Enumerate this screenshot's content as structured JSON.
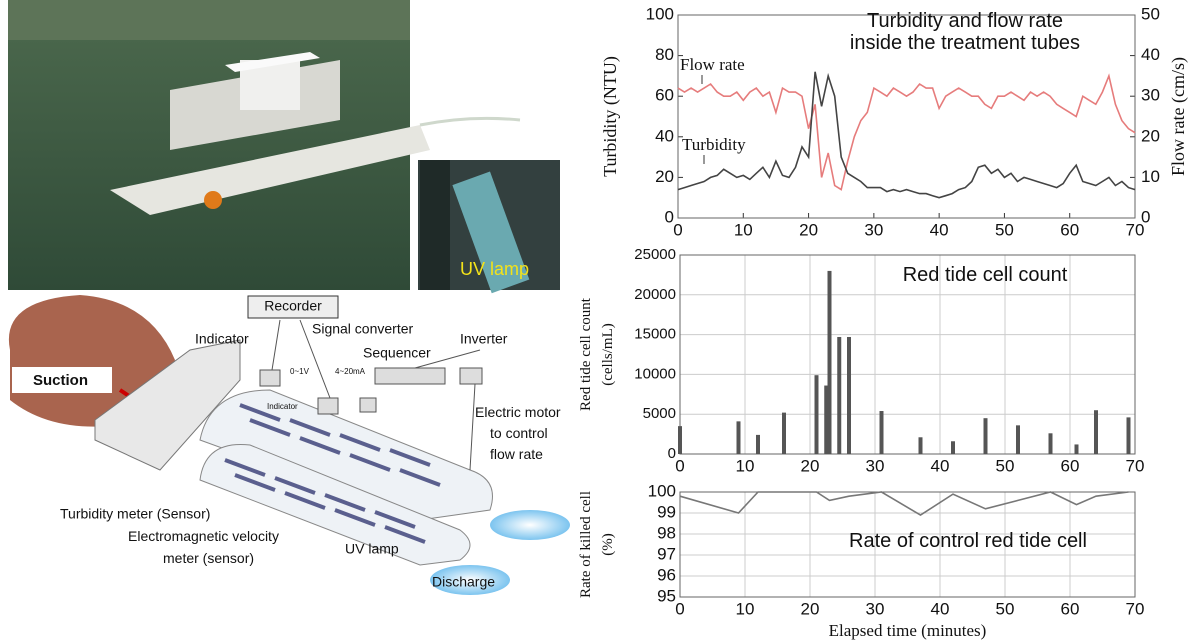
{
  "photo": {
    "inset_label": "UV lamp"
  },
  "diagram": {
    "recorder": "Recorder",
    "indicator": "Indicator",
    "signal_converter": "Signal converter",
    "sequencer": "Sequencer",
    "inverter": "Inverter",
    "suction": "Suction",
    "indicator_small": "Indicator",
    "voltage": "0~1V",
    "current": "4~20mA",
    "motor": [
      "Electric motor",
      "to control",
      "flow rate"
    ],
    "turbidity_meter": "Turbidity meter (Sensor)",
    "velocity_meter": [
      "Electromagnetic velocity",
      "meter (sensor)"
    ],
    "uv_lamp": "UV lamp",
    "discharge": "Discharge"
  },
  "chart_data": [
    {
      "type": "line",
      "title": [
        "Turbidity and flow rate",
        "inside the treatment tubes"
      ],
      "ylabel": "Turbidity (NTU)",
      "y2label": "Flow rate (cm/s)",
      "x": [
        0,
        1,
        2,
        3,
        4,
        5,
        6,
        7,
        8,
        9,
        10,
        11,
        12,
        13,
        14,
        15,
        16,
        17,
        18,
        19,
        20,
        21,
        22,
        23,
        24,
        25,
        26,
        27,
        28,
        29,
        30,
        31,
        32,
        33,
        34,
        35,
        36,
        37,
        38,
        39,
        40,
        41,
        42,
        43,
        44,
        45,
        46,
        47,
        48,
        49,
        50,
        51,
        52,
        53,
        54,
        55,
        56,
        57,
        58,
        59,
        60,
        61,
        62,
        63,
        64,
        65,
        66,
        67,
        68,
        69,
        70
      ],
      "series": [
        {
          "name": "Flow rate",
          "color": "#e67c7c",
          "axis": "y2",
          "values": [
            32,
            31,
            32,
            31,
            32,
            33,
            31,
            30,
            30,
            31,
            29,
            31,
            32,
            30,
            31,
            26,
            32,
            31,
            31,
            30,
            22,
            28,
            10,
            16,
            8,
            7,
            14,
            20,
            24,
            26,
            32,
            31,
            30,
            32,
            31,
            30,
            31,
            33,
            32,
            32,
            27,
            30,
            31,
            32,
            31,
            30,
            30,
            28,
            27,
            30,
            30,
            31,
            30,
            29,
            31,
            30,
            31,
            30,
            28,
            27,
            26,
            25,
            30,
            29,
            28,
            31,
            35,
            28,
            24,
            22,
            21
          ]
        },
        {
          "name": "Turbidity",
          "color": "#444444",
          "values": [
            14,
            15,
            16,
            17,
            18,
            20,
            21,
            24,
            22,
            20,
            21,
            19,
            22,
            25,
            20,
            28,
            21,
            20,
            25,
            35,
            30,
            72,
            55,
            70,
            60,
            30,
            22,
            20,
            18,
            15,
            15,
            15,
            13,
            14,
            13,
            14,
            13,
            12,
            12,
            11,
            10,
            11,
            12,
            14,
            15,
            18,
            25,
            26,
            22,
            24,
            20,
            22,
            18,
            20,
            19,
            18,
            17,
            16,
            15,
            17,
            22,
            26,
            18,
            17,
            16,
            18,
            20,
            16,
            18,
            15,
            14
          ]
        }
      ],
      "xlim": [
        0,
        70
      ],
      "xticks": [
        0,
        10,
        20,
        30,
        40,
        50,
        60,
        70
      ],
      "ylim": [
        0,
        100
      ],
      "yticks": [
        0,
        20,
        40,
        60,
        80,
        100
      ],
      "y2lim": [
        0,
        50
      ],
      "y2ticks": [
        0,
        10,
        20,
        30,
        40,
        50
      ],
      "grid": false
    },
    {
      "type": "bar",
      "title": "Red tide cell count",
      "ylabel": [
        "Red tide cell count",
        "(cells/mL)"
      ],
      "x": [
        0,
        9,
        12,
        16,
        21,
        22.5,
        23,
        24.5,
        26,
        31,
        37,
        42,
        47,
        52,
        57,
        61,
        64,
        69
      ],
      "values": [
        3500,
        4100,
        2400,
        5200,
        9900,
        8600,
        23000,
        14700,
        14700,
        5400,
        2100,
        1600,
        4500,
        3600,
        2600,
        1200,
        5500,
        4600
      ],
      "color": "#555555",
      "xlim": [
        0,
        70
      ],
      "xticks": [
        0,
        10,
        20,
        30,
        40,
        50,
        60,
        70
      ],
      "ylim": [
        0,
        25000
      ],
      "yticks": [
        0,
        5000,
        10000,
        15000,
        20000,
        25000
      ],
      "grid": true
    },
    {
      "type": "line",
      "title": "Rate of control red tide cell",
      "ylabel": [
        "Rate of killed cell",
        "(%)"
      ],
      "xlabel": "Elapsed time (minutes)",
      "x": [
        0,
        9,
        12,
        16,
        21,
        23,
        26,
        31,
        37,
        42,
        47,
        52,
        57,
        61,
        64,
        69
      ],
      "series": [
        {
          "color": "#777777",
          "values": [
            99.8,
            99.0,
            100,
            100,
            100,
            99.6,
            99.8,
            100,
            98.9,
            99.9,
            99.2,
            99.6,
            100,
            99.4,
            99.8,
            100
          ]
        }
      ],
      "xlim": [
        0,
        70
      ],
      "xticks": [
        0,
        10,
        20,
        30,
        40,
        50,
        60,
        70
      ],
      "ylim": [
        95,
        100
      ],
      "yticks": [
        95,
        96,
        97,
        98,
        99,
        100
      ],
      "grid": true
    }
  ]
}
